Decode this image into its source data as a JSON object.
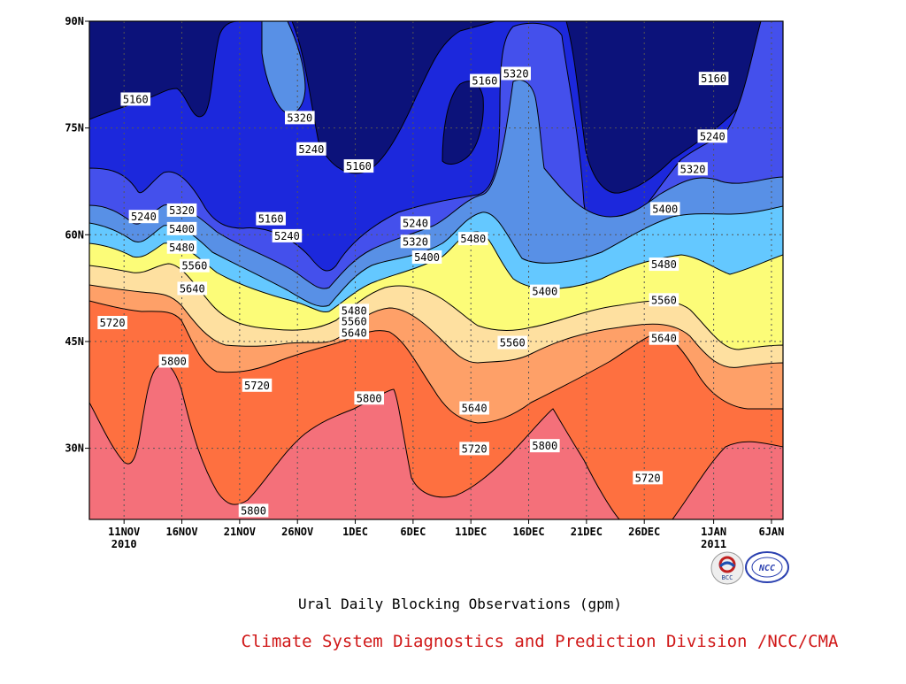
{
  "chart_data": {
    "type": "heatmap",
    "title": "Ural Daily Blocking Observations (gpm)",
    "x_dates": [
      "2010-11-08",
      "2011-01-07"
    ],
    "y_range_deg_n": [
      20,
      90
    ],
    "x_ticks": [
      {
        "label": "11NOV",
        "sub": "2010",
        "date": "2010-11-11"
      },
      {
        "label": "16NOV",
        "sub": "",
        "date": "2010-11-16"
      },
      {
        "label": "21NOV",
        "sub": "",
        "date": "2010-11-21"
      },
      {
        "label": "26NOV",
        "sub": "",
        "date": "2010-11-26"
      },
      {
        "label": "1DEC",
        "sub": "",
        "date": "2010-12-01"
      },
      {
        "label": "6DEC",
        "sub": "",
        "date": "2010-12-06"
      },
      {
        "label": "11DEC",
        "sub": "",
        "date": "2010-12-11"
      },
      {
        "label": "16DEC",
        "sub": "",
        "date": "2010-12-16"
      },
      {
        "label": "21DEC",
        "sub": "",
        "date": "2010-12-21"
      },
      {
        "label": "26DEC",
        "sub": "",
        "date": "2010-12-26"
      },
      {
        "label": "1JAN",
        "sub": "2011",
        "date": "2011-01-01"
      },
      {
        "label": "6JAN",
        "sub": "",
        "date": "2011-01-06"
      }
    ],
    "y_ticks": [
      {
        "label": "30N",
        "value": 30
      },
      {
        "label": "45N",
        "value": 45
      },
      {
        "label": "60N",
        "value": 60
      },
      {
        "label": "75N",
        "value": 75
      },
      {
        "label": "90N",
        "value": 90
      }
    ],
    "grid": true,
    "contour_levels": [
      5160,
      5240,
      5320,
      5400,
      5480,
      5560,
      5640,
      5720,
      5800
    ],
    "band_colors": [
      "#0c127a",
      "#1c28dc",
      "#4450ec",
      "#5890e6",
      "#64c8ff",
      "#fcfc78",
      "#fee0a0",
      "#fea068",
      "#fe7040",
      "#f4707a"
    ],
    "contour_labels": [
      {
        "value": "5160",
        "date": "2010-11-12.0",
        "lat": 79.0
      },
      {
        "value": "5240",
        "date": "2010-11-12.7",
        "lat": 62.5
      },
      {
        "value": "5320",
        "date": "2010-11-16.0",
        "lat": 63.4
      },
      {
        "value": "5400",
        "date": "2010-11-16.0",
        "lat": 60.8
      },
      {
        "value": "5480",
        "date": "2010-11-16.0",
        "lat": 58.2
      },
      {
        "value": "5560",
        "date": "2010-11-17.1",
        "lat": 55.6
      },
      {
        "value": "5640",
        "date": "2010-11-16.9",
        "lat": 52.4
      },
      {
        "value": "5720",
        "date": "2010-11-10.0",
        "lat": 47.6
      },
      {
        "value": "5800",
        "date": "2010-11-15.3",
        "lat": 42.2
      },
      {
        "value": "5160",
        "date": "2010-11-23.7",
        "lat": 62.2
      },
      {
        "value": "5240",
        "date": "2010-11-25.1",
        "lat": 59.8
      },
      {
        "value": "5720",
        "date": "2010-11-22.5",
        "lat": 38.8
      },
      {
        "value": "5800",
        "date": "2010-11-22.2",
        "lat": 21.2
      },
      {
        "value": "5320",
        "date": "2010-11-26.2",
        "lat": 76.4
      },
      {
        "value": "5240",
        "date": "2010-11-27.2",
        "lat": 72.0
      },
      {
        "value": "5160",
        "date": "2010-12-01.3",
        "lat": 69.6
      },
      {
        "value": "5480",
        "date": "2010-11-30.9",
        "lat": 49.3
      },
      {
        "value": "5560",
        "date": "2010-11-30.9",
        "lat": 47.8
      },
      {
        "value": "5640",
        "date": "2010-11-30.9",
        "lat": 46.2
      },
      {
        "value": "5800",
        "date": "2010-12-02.2",
        "lat": 37.0
      },
      {
        "value": "5240",
        "date": "2010-12-06.2",
        "lat": 61.6
      },
      {
        "value": "5320",
        "date": "2010-12-06.2",
        "lat": 59.0
      },
      {
        "value": "5400",
        "date": "2010-12-07.2",
        "lat": 56.8
      },
      {
        "value": "5160",
        "date": "2010-12-12.2",
        "lat": 81.6
      },
      {
        "value": "5320",
        "date": "2010-12-14.9",
        "lat": 82.6
      },
      {
        "value": "5480",
        "date": "2010-12-11.2",
        "lat": 59.4
      },
      {
        "value": "5640",
        "date": "2010-12-11.3",
        "lat": 35.6
      },
      {
        "value": "5720",
        "date": "2010-12-11.3",
        "lat": 29.9
      },
      {
        "value": "5400",
        "date": "2010-12-17.4",
        "lat": 52.0
      },
      {
        "value": "5560",
        "date": "2010-12-14.6",
        "lat": 44.8
      },
      {
        "value": "5800",
        "date": "2010-12-17.4",
        "lat": 30.3
      },
      {
        "value": "5160",
        "date": "2011-01-01.0",
        "lat": 81.9
      },
      {
        "value": "5240",
        "date": "2010-12-31.9",
        "lat": 73.8
      },
      {
        "value": "5320",
        "date": "2010-12-30.2",
        "lat": 69.2
      },
      {
        "value": "5400",
        "date": "2010-12-27.8",
        "lat": 63.6
      },
      {
        "value": "5480",
        "date": "2010-12-27.7",
        "lat": 55.8
      },
      {
        "value": "5560",
        "date": "2010-12-27.7",
        "lat": 50.8
      },
      {
        "value": "5640",
        "date": "2010-12-27.7",
        "lat": 45.4
      },
      {
        "value": "5720",
        "date": "2010-12-26.3",
        "lat": 25.8
      }
    ]
  },
  "footer": {
    "caption": "Ural Daily Blocking Observations (gpm)",
    "credit": "Climate System Diagnostics and Prediction Division /NCC/CMA",
    "logo_bcc": "BCC",
    "logo_ncc": "NCC"
  }
}
